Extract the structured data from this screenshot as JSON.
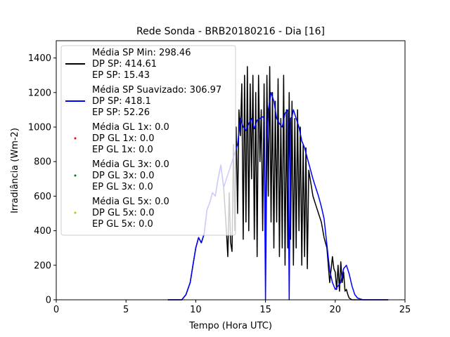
{
  "chart_data": {
    "type": "line",
    "title": "Rede Sonda - BRB20180216 - Dia [16]",
    "xlabel": "Tempo (Hora UTC)",
    "ylabel": "Irradiância (Wm-2)",
    "xlim": [
      0,
      25
    ],
    "ylim": [
      0,
      1500
    ],
    "xticks": [
      0,
      5,
      10,
      15,
      20,
      25
    ],
    "yticks": [
      0,
      200,
      400,
      600,
      800,
      1000,
      1200,
      1400
    ],
    "grid": false,
    "legend_position": "top-left",
    "series": [
      {
        "name": "Média SP Min",
        "color": "#000000",
        "legend_lines": [
          "Média SP Min: 298.46",
          "DP SP: 414.61",
          "EP SP: 15.43"
        ],
        "x": [
          8.0,
          9.0,
          9.3,
          9.6,
          9.8,
          10.0,
          10.2,
          10.4,
          10.6,
          10.8,
          11.0,
          11.2,
          11.4,
          11.6,
          11.8,
          12.0,
          12.2,
          12.3,
          12.4,
          12.5,
          12.6,
          12.7,
          12.8,
          12.9,
          13.0,
          13.1,
          13.2,
          13.3,
          13.4,
          13.5,
          13.6,
          13.7,
          13.8,
          13.9,
          14.0,
          14.1,
          14.2,
          14.3,
          14.4,
          14.5,
          14.6,
          14.7,
          14.8,
          14.9,
          15.0,
          15.1,
          15.2,
          15.3,
          15.4,
          15.5,
          15.6,
          15.7,
          15.8,
          15.9,
          16.0,
          16.1,
          16.2,
          16.3,
          16.4,
          16.5,
          16.6,
          16.7,
          16.8,
          16.9,
          17.0,
          17.1,
          17.2,
          17.3,
          17.4,
          17.5,
          17.6,
          17.7,
          17.8,
          17.9,
          18.0,
          18.1,
          18.2,
          18.3,
          18.4,
          18.6,
          18.8,
          19.0,
          19.2,
          19.4,
          19.6,
          19.8,
          19.9,
          20.0,
          20.1,
          20.2,
          20.3,
          20.4,
          20.5,
          20.6,
          20.7,
          20.8,
          20.9,
          21.0,
          21.1,
          21.2,
          21.4,
          21.6,
          21.8,
          22.0,
          23.8
        ],
        "y": [
          0,
          0,
          30,
          100,
          200,
          300,
          360,
          330,
          380,
          520,
          560,
          620,
          600,
          700,
          780,
          650,
          400,
          250,
          620,
          330,
          280,
          900,
          400,
          1000,
          500,
          1100,
          950,
          1250,
          350,
          1300,
          450,
          1350,
          400,
          1250,
          700,
          1300,
          350,
          1200,
          250,
          1300,
          800,
          1100,
          400,
          1250,
          150,
          1300,
          600,
          1350,
          450,
          1200,
          300,
          1150,
          450,
          1280,
          250,
          1050,
          300,
          1300,
          200,
          1100,
          300,
          1200,
          350,
          1150,
          200,
          1050,
          300,
          1100,
          400,
          1000,
          200,
          900,
          250,
          880,
          180,
          750,
          700,
          650,
          600,
          550,
          500,
          450,
          360,
          300,
          100,
          250,
          180,
          160,
          60,
          200,
          50,
          220,
          100,
          160,
          50,
          60,
          30,
          10,
          5,
          0,
          0,
          0,
          0,
          0,
          0
        ]
      },
      {
        "name": "Média SP Suavizado",
        "color": "#0000ff",
        "legend_lines": [
          "Média SP Suavizado: 306.97",
          "DP SP: 418.1",
          "EP SP: 52.26"
        ],
        "x": [
          8.0,
          9.0,
          9.3,
          9.6,
          9.8,
          10.0,
          10.2,
          10.4,
          10.6,
          10.8,
          11.0,
          11.2,
          11.4,
          11.6,
          11.8,
          12.0,
          12.2,
          12.4,
          12.6,
          12.8,
          13.0,
          13.2,
          13.4,
          13.6,
          13.8,
          14.0,
          14.2,
          14.4,
          14.6,
          14.8,
          14.9,
          15.0,
          15.1,
          15.2,
          15.4,
          15.6,
          15.8,
          16.0,
          16.2,
          16.4,
          16.6,
          16.7,
          16.8,
          16.9,
          17.0,
          17.2,
          17.4,
          17.6,
          17.8,
          18.0,
          18.2,
          18.4,
          18.6,
          18.8,
          19.0,
          19.2,
          19.4,
          19.6,
          19.8,
          20.0,
          20.2,
          20.4,
          20.6,
          20.8,
          21.0,
          21.2,
          21.4,
          21.6,
          21.8,
          22.0,
          23.8
        ],
        "y": [
          0,
          0,
          30,
          100,
          200,
          300,
          360,
          330,
          380,
          520,
          560,
          620,
          600,
          700,
          780,
          650,
          700,
          750,
          800,
          850,
          900,
          1050,
          1000,
          980,
          1020,
          1050,
          990,
          1040,
          1050,
          1060,
          1050,
          0,
          900,
          1100,
          1200,
          1150,
          1050,
          1020,
          1000,
          1080,
          1100,
          0,
          1050,
          1060,
          1100,
          1050,
          1000,
          920,
          880,
          820,
          760,
          700,
          650,
          600,
          540,
          470,
          320,
          170,
          100,
          60,
          80,
          100,
          180,
          200,
          150,
          80,
          30,
          10,
          5,
          0,
          0
        ]
      },
      {
        "name": "Média GL 1x",
        "color": "#ff0000",
        "legend_lines": [
          "Média GL 1x: 0.0",
          "DP GL 1x: 0.0",
          "EP GL 1x: 0.0"
        ],
        "x": [],
        "y": []
      },
      {
        "name": "Média GL 3x",
        "color": "#008000",
        "legend_lines": [
          "Média GL 3x: 0.0",
          "DP GL 3x: 0.0",
          "EP GL 3x: 0.0"
        ],
        "x": [],
        "y": []
      },
      {
        "name": "Média GL 5x",
        "color": "#bfbf00",
        "legend_lines": [
          "Média GL 5x: 0.0",
          "DP GL 5x: 0.0",
          "EP GL 5x: 0.0"
        ],
        "x": [],
        "y": []
      }
    ]
  }
}
